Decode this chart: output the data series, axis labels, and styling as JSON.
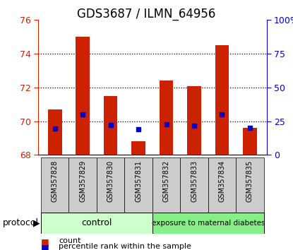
{
  "title": "GDS3687 / ILMN_64956",
  "categories": [
    "GSM357828",
    "GSM357829",
    "GSM357830",
    "GSM357831",
    "GSM357832",
    "GSM357833",
    "GSM357834",
    "GSM357835"
  ],
  "bar_tops": [
    70.7,
    75.0,
    71.5,
    68.8,
    72.4,
    72.1,
    74.5,
    69.6
  ],
  "bar_base": 68.0,
  "percentile_values": [
    19.5,
    30.0,
    22.0,
    19.0,
    23.0,
    21.5,
    30.0,
    20.0
  ],
  "ylim_left": [
    68,
    76
  ],
  "ylim_right": [
    0,
    100
  ],
  "yticks_left": [
    68,
    70,
    72,
    74,
    76
  ],
  "yticks_right": [
    0,
    25,
    50,
    75,
    100
  ],
  "ytick_labels_right": [
    "0",
    "25",
    "50",
    "75",
    "100%"
  ],
  "bar_color": "#cc2200",
  "percentile_color": "#0000cc",
  "title_fontsize": 12,
  "control_label": "control",
  "exposure_label": "exposure to maternal diabetes",
  "control_color": "#ccffcc",
  "exposure_color": "#88ee88",
  "protocol_label": "protocol",
  "legend_count": "count",
  "legend_percentile": "percentile rank within the sample",
  "n_control": 4,
  "n_exposure": 4
}
